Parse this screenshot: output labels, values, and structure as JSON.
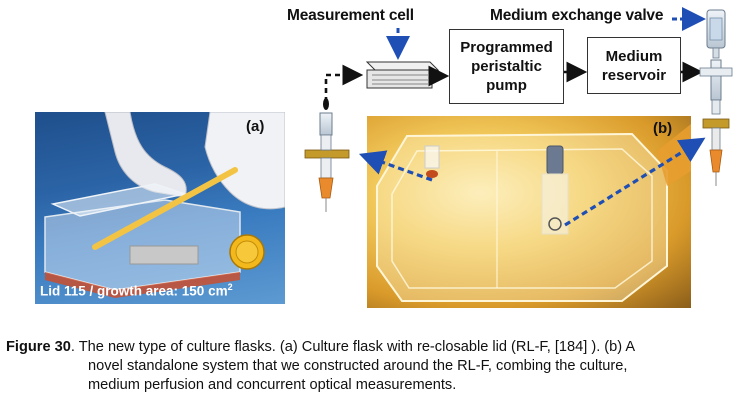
{
  "diagram": {
    "measurement_cell_label": "Measurement cell",
    "exchange_valve_label": "Medium exchange valve",
    "pump_label_1": "Programmed",
    "pump_label_2": "peristaltic",
    "pump_label_3": "pump",
    "reservoir_label_1": "Medium",
    "reservoir_label_2": "reservoir"
  },
  "photo_a": {
    "tag": "(a)",
    "caption_prefix": "Lid 115 / growth area: 150 cm",
    "caption_sup": "2"
  },
  "photo_b": {
    "tag": "(b)"
  },
  "figure_caption": {
    "figure_label": "Figure 30",
    "line1": ". The new type of culture flasks. (a) Culture flask with re-closable lid (RL-F, [184] ). (b)  A",
    "line2": "novel standalone system that we constructed around the RL-F, combing the culture,",
    "line3": "medium perfusion and concurrent optical measurements."
  },
  "colors": {
    "arrow_blue": "#1f4fb5",
    "arrow_black": "#111111",
    "tube_orange": "#e98a2c",
    "band_gold": "#c49a2a"
  }
}
